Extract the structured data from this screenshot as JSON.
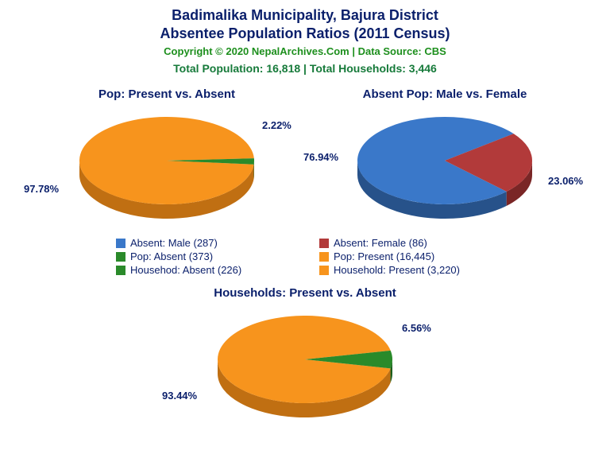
{
  "title_line1": "Badimalika Municipality, Bajura District",
  "title_line2": "Absentee Population Ratios (2011 Census)",
  "copyright": "Copyright © 2020 NepalArchives.Com | Data Source: CBS",
  "totals": "Total Population: 16,818 | Total Households: 3,446",
  "colors": {
    "text_navy": "#0a1f6b",
    "text_green": "#1d8f1d",
    "text_teal": "#167a3a",
    "orange": "#f7941d",
    "orange_side": "#c06f12",
    "green": "#2a8a2a",
    "green_side": "#1c5e1c",
    "blue": "#3a78c9",
    "blue_side": "#27528a",
    "red": "#b23a3a",
    "red_side": "#7a2626",
    "background": "#ffffff"
  },
  "charts": {
    "pop": {
      "title": "Pop: Present vs. Absent",
      "slices": [
        {
          "label": "Pop: Present",
          "value": 16445,
          "pct": 97.78,
          "color": "#f7941d",
          "side": "#c06f12"
        },
        {
          "label": "Pop: Absent",
          "value": 373,
          "pct": 2.22,
          "color": "#2a8a2a",
          "side": "#1c5e1c"
        }
      ],
      "labels": {
        "big": "97.78%",
        "small": "2.22%"
      }
    },
    "gender": {
      "title": "Absent Pop: Male vs. Female",
      "slices": [
        {
          "label": "Absent: Male",
          "value": 287,
          "pct": 76.94,
          "color": "#3a78c9",
          "side": "#27528a"
        },
        {
          "label": "Absent: Female",
          "value": 86,
          "pct": 23.06,
          "color": "#b23a3a",
          "side": "#7a2626"
        }
      ],
      "labels": {
        "big": "76.94%",
        "small": "23.06%"
      }
    },
    "hh": {
      "title": "Households: Present vs. Absent",
      "slices": [
        {
          "label": "Household: Present",
          "value": 3220,
          "pct": 93.44,
          "color": "#f7941d",
          "side": "#c06f12"
        },
        {
          "label": "Househod: Absent",
          "value": 226,
          "pct": 6.56,
          "color": "#2a8a2a",
          "side": "#1c5e1c"
        }
      ],
      "labels": {
        "big": "93.44%",
        "small": "6.56%"
      }
    }
  },
  "legend": [
    {
      "color": "#3a78c9",
      "text": "Absent: Male (287)"
    },
    {
      "color": "#b23a3a",
      "text": "Absent: Female (86)"
    },
    {
      "color": "#2a8a2a",
      "text": "Pop: Absent (373)"
    },
    {
      "color": "#f7941d",
      "text": "Pop: Present (16,445)"
    },
    {
      "color": "#2a8a2a",
      "text": "Househod: Absent (226)"
    },
    {
      "color": "#f7941d",
      "text": "Household: Present (3,220)"
    }
  ],
  "layout": {
    "pie_rx": 110,
    "pie_ry": 55,
    "pie_depth": 18
  }
}
